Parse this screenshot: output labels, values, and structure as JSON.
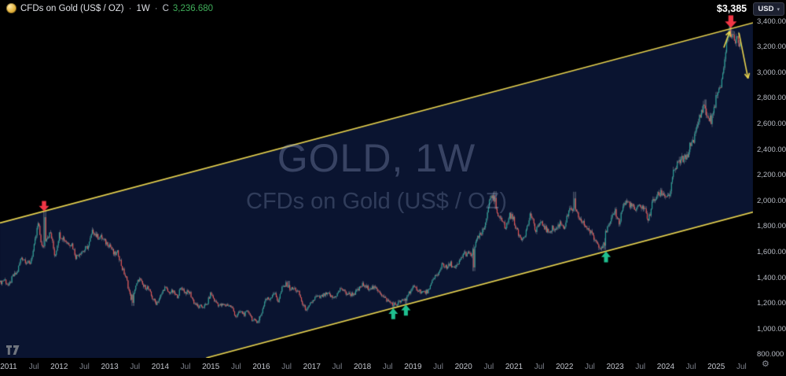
{
  "header": {
    "symbol_title": "CFDs on Gold (US$ / OZ)",
    "sep": "·",
    "timeframe": "1W",
    "price_prefix": "C",
    "last_price": "3,236.680"
  },
  "currency_button": {
    "label": "USD",
    "caret": "▾"
  },
  "annotation": {
    "peak_price_label": "$3,385"
  },
  "watermark": {
    "title": "GOLD, 1W",
    "subtitle": "CFDs on Gold (US$ / OZ)"
  },
  "price_axis": {
    "gear_icon": "⚙",
    "ticks": [
      {
        "value": 3400,
        "label": "3,400.000"
      },
      {
        "value": 3200,
        "label": "3,200.000"
      },
      {
        "value": 3000,
        "label": "3,000.000"
      },
      {
        "value": 2800,
        "label": "2,800.000"
      },
      {
        "value": 2600,
        "label": "2,600.000"
      },
      {
        "value": 2400,
        "label": "2,400.000"
      },
      {
        "value": 2200,
        "label": "2,200.000"
      },
      {
        "value": 2000,
        "label": "2,000.000"
      },
      {
        "value": 1800,
        "label": "1,800.000"
      },
      {
        "value": 1600,
        "label": "1,600.000"
      },
      {
        "value": 1400,
        "label": "1,400.000"
      },
      {
        "value": 1200,
        "label": "1,200.000"
      },
      {
        "value": 1000,
        "label": "1,000.000"
      },
      {
        "value": 800,
        "label": "800.000"
      }
    ]
  },
  "time_axis": {
    "years": [
      "2011",
      "2012",
      "2013",
      "2014",
      "2015",
      "2016",
      "2017",
      "2018",
      "2019",
      "2020",
      "2021",
      "2022",
      "2023",
      "2024",
      "2025"
    ],
    "month_label": "Jul"
  },
  "chart_data": {
    "type": "candlestick",
    "title": "GOLD, 1W",
    "subtitle": "CFDs on Gold (US$ / OZ)",
    "timeframe": "1W",
    "last_close": 3236.68,
    "y_axis": {
      "min": 800,
      "max": 3400,
      "tick_step": 200,
      "unit": "USD/oz"
    },
    "x_axis": {
      "start": "2010-11",
      "end": "2025-06",
      "unit": "weekly"
    },
    "monthly_close": {
      "2010": [
        1360,
        1390
      ],
      "2011": [
        1330,
        1410,
        1435,
        1560,
        1535,
        1500,
        1630,
        1825,
        1620,
        1720,
        1745,
        1565
      ],
      "2012": [
        1740,
        1710,
        1670,
        1665,
        1560,
        1600,
        1615,
        1650,
        1770,
        1720,
        1715,
        1675
      ],
      "2013": [
        1660,
        1580,
        1595,
        1470,
        1390,
        1235,
        1310,
        1395,
        1330,
        1325,
        1250,
        1200
      ],
      "2014": [
        1245,
        1325,
        1285,
        1290,
        1250,
        1325,
        1285,
        1285,
        1210,
        1170,
        1175,
        1185
      ],
      "2015": [
        1280,
        1215,
        1185,
        1185,
        1190,
        1170,
        1095,
        1135,
        1115,
        1140,
        1065,
        1060
      ],
      "2016": [
        1115,
        1235,
        1235,
        1290,
        1215,
        1320,
        1350,
        1310,
        1315,
        1275,
        1175,
        1150
      ],
      "2017": [
        1210,
        1250,
        1245,
        1265,
        1270,
        1240,
        1270,
        1320,
        1280,
        1270,
        1275,
        1300
      ],
      "2018": [
        1345,
        1320,
        1325,
        1315,
        1300,
        1250,
        1220,
        1200,
        1190,
        1215,
        1220,
        1280
      ],
      "2019": [
        1320,
        1315,
        1290,
        1285,
        1305,
        1410,
        1415,
        1520,
        1470,
        1510,
        1465,
        1515
      ],
      "2020": [
        1590,
        1585,
        1575,
        1685,
        1730,
        1780,
        1975,
        2035,
        1885,
        1880,
        1775,
        1895
      ],
      "2021": [
        1850,
        1735,
        1710,
        1770,
        1905,
        1770,
        1815,
        1815,
        1755,
        1785,
        1775,
        1830
      ],
      "2022": [
        1795,
        1910,
        1935,
        1895,
        1840,
        1805,
        1765,
        1710,
        1660,
        1640,
        1770,
        1825
      ],
      "2023": [
        1930,
        1825,
        1970,
        1990,
        1960,
        1920,
        1965,
        1940,
        1850,
        1995,
        2035,
        2065
      ],
      "2024": [
        2040,
        2045,
        2230,
        2290,
        2325,
        2325,
        2445,
        2500,
        2635,
        2745,
        2650,
        2625
      ],
      "2025": [
        2800,
        2860,
        3085,
        3340,
        3290,
        3240
      ]
    },
    "spike_highs": [
      {
        "month": "2011-09",
        "value": 1920
      },
      {
        "month": "2016-07",
        "value": 1375
      },
      {
        "month": "2020-08",
        "value": 2075
      },
      {
        "month": "2022-03",
        "value": 2070
      },
      {
        "month": "2024-10",
        "value": 2790
      },
      {
        "month": "2025-04",
        "value": 3385
      }
    ],
    "dip_lows": [
      {
        "month": "2013-06",
        "value": 1180
      },
      {
        "month": "2015-12",
        "value": 1046
      },
      {
        "month": "2018-08",
        "value": 1160
      },
      {
        "month": "2018-11",
        "value": 1196
      },
      {
        "month": "2020-03",
        "value": 1451
      },
      {
        "month": "2022-09",
        "value": 1615
      },
      {
        "month": "2022-10",
        "value": 1617
      }
    ],
    "channel": {
      "upper_line": {
        "from": [
          2010.83,
          1827
        ],
        "to": [
          2025.73,
          3388
        ]
      },
      "lower_line": {
        "from": [
          2014.91,
          774
        ],
        "to": [
          2025.73,
          1912
        ]
      }
    },
    "arrows": [
      {
        "kind": "block",
        "dir": "down",
        "color": "red",
        "year": 2011.7,
        "price": 1918,
        "w": 13,
        "h": 13
      },
      {
        "kind": "block",
        "dir": "down",
        "color": "red",
        "year": 2025.29,
        "price": 3348,
        "w": 15,
        "h": 16
      },
      {
        "kind": "block",
        "dir": "up",
        "color": "green",
        "year": 2018.61,
        "price": 1163,
        "w": 12,
        "h": 14
      },
      {
        "kind": "block",
        "dir": "up",
        "color": "green",
        "year": 2018.86,
        "price": 1190,
        "w": 12,
        "h": 14
      },
      {
        "kind": "block",
        "dir": "up",
        "color": "green",
        "year": 2022.82,
        "price": 1606,
        "w": 12,
        "h": 14
      },
      {
        "kind": "line",
        "color": "yellow",
        "from": [
          2025.15,
          3195
        ],
        "to": [
          2025.27,
          3322
        ]
      },
      {
        "kind": "line",
        "color": "yellow",
        "from": [
          2025.45,
          3310
        ],
        "to": [
          2025.63,
          2955
        ]
      }
    ],
    "colors": {
      "up": "#26a69a",
      "down": "#ef5350",
      "wick": "#b2b5be",
      "channel_line": "#e8d34f",
      "channel_fill": "#0a1430",
      "arrow_red": "#f23645",
      "arrow_green": "#1fbf8f",
      "background": "#000000"
    }
  }
}
